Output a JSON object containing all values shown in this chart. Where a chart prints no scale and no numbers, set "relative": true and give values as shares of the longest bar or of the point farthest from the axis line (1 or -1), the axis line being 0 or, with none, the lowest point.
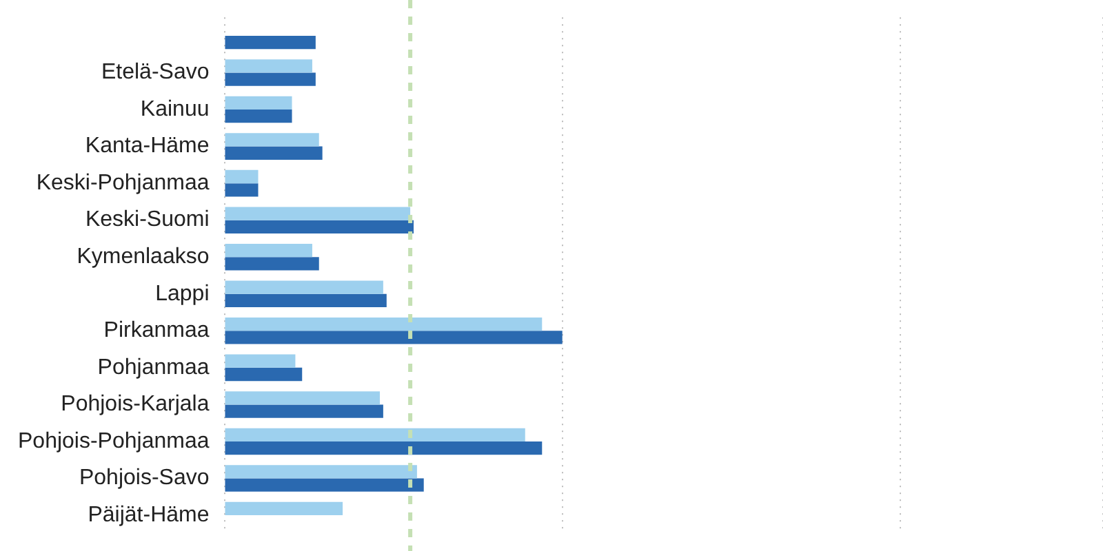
{
  "chart_data": {
    "type": "bar",
    "orientation": "horizontal",
    "relative": true,
    "grid": "x",
    "legend": false,
    "categories": [
      null,
      "Etelä-Savo",
      "Kainuu",
      "Kanta-Häme",
      "Keski-Pohjanmaa",
      "Keski-Suomi",
      "Kymenlaakso",
      "Lappi",
      "Pirkanmaa",
      "Pohjanmaa",
      "Pohjois-Karjala",
      "Pohjois-Pohjanmaa",
      "Pohjois-Savo",
      "Päijät-Häme"
    ],
    "series": [
      {
        "color": "#9dd0ee",
        "values": [
          null,
          0.26,
          0.2,
          0.28,
          0.1,
          0.55,
          0.26,
          0.47,
          0.94,
          0.21,
          0.46,
          0.89,
          0.57,
          0.35
        ]
      },
      {
        "color": "#2a69b0",
        "values": [
          0.27,
          0.27,
          0.2,
          0.29,
          0.1,
          0.56,
          0.28,
          0.48,
          1,
          0.23,
          0.47,
          0.94,
          0.59,
          null
        ]
      }
    ],
    "ref_lines": [
      {
        "axis": "x",
        "value": 0.55,
        "color": "#c5e0b4",
        "line_style": "dashed"
      }
    ]
  }
}
